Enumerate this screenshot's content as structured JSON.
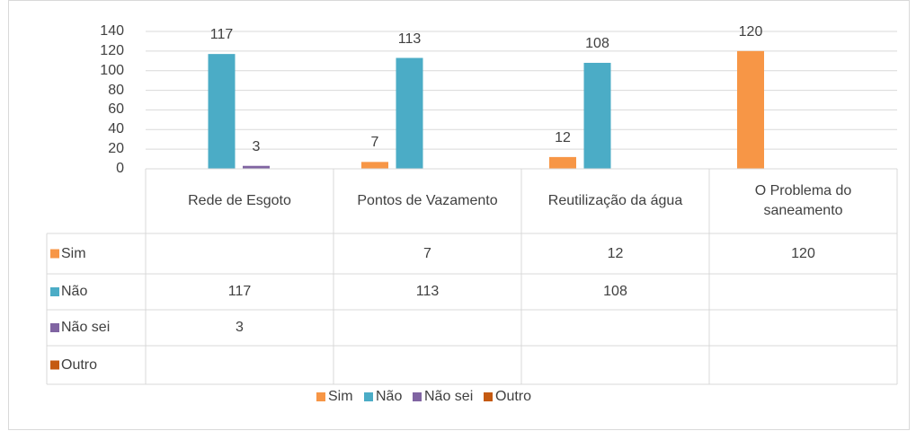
{
  "chart_data": {
    "type": "bar",
    "categories": [
      "Rede de Esgoto",
      "Pontos de Vazamento",
      "Reutilização da água",
      "O Problema do saneamento"
    ],
    "series": [
      {
        "name": "Sim",
        "color": "#f79646",
        "values": [
          null,
          7,
          12,
          120
        ]
      },
      {
        "name": "Não",
        "color": "#4bacc6",
        "values": [
          117,
          113,
          108,
          null
        ]
      },
      {
        "name": "Não sei",
        "color": "#8064a2",
        "values": [
          3,
          null,
          null,
          null
        ]
      },
      {
        "name": "Outro",
        "color": "#c55a11",
        "values": [
          null,
          null,
          null,
          null
        ]
      }
    ],
    "ylim": [
      0,
      140
    ],
    "yticks": [
      0,
      20,
      40,
      60,
      80,
      100,
      120,
      140
    ],
    "grid": true,
    "data_labels": true,
    "data_table": true,
    "legend": "bottom"
  }
}
